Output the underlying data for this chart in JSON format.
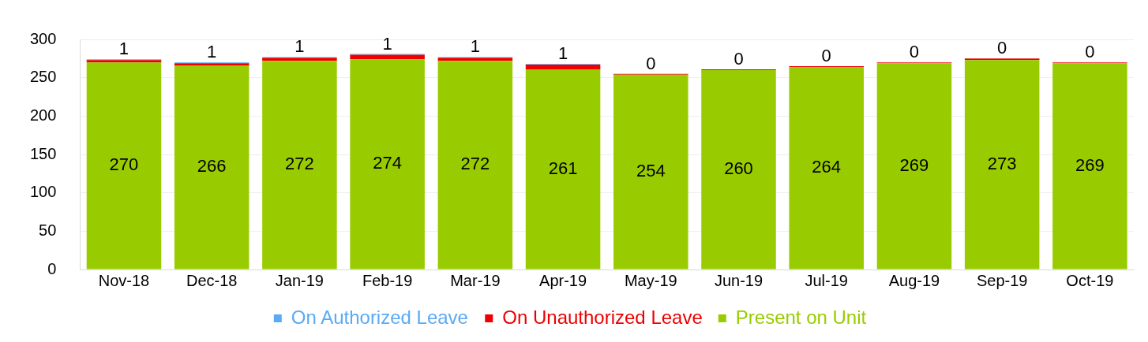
{
  "chart_data": {
    "type": "bar",
    "stacked": true,
    "categories": [
      "Nov-18",
      "Dec-18",
      "Jan-19",
      "Feb-19",
      "Mar-19",
      "Apr-19",
      "May-19",
      "Jun-19",
      "Jul-19",
      "Aug-19",
      "Sep-19",
      "Oct-19"
    ],
    "series": [
      {
        "name": "Present on Unit",
        "color": "#99cc00",
        "values": [
          270,
          266,
          272,
          274,
          272,
          261,
          254,
          260,
          264,
          269,
          273,
          269
        ],
        "value_labels": [
          "270",
          "266",
          "272",
          "274",
          "272",
          "261",
          "254",
          "260",
          "264",
          "269",
          "273",
          "269"
        ]
      },
      {
        "name": "On Unauthorized Leave",
        "color": "#ee0000",
        "values": [
          3,
          3,
          4,
          6,
          4,
          6,
          1,
          1,
          1,
          1,
          2,
          1
        ]
      },
      {
        "name": "On Authorized Leave",
        "color": "#5aaaf5",
        "values": [
          1,
          1,
          1,
          1,
          1,
          1,
          0,
          0,
          0,
          0,
          0,
          0
        ],
        "value_labels": [
          "1",
          "1",
          "1",
          "1",
          "1",
          "1",
          "0",
          "0",
          "0",
          "0",
          "0",
          "0"
        ]
      }
    ],
    "ylim": [
      0,
      300
    ],
    "yticks": [
      0,
      50,
      100,
      150,
      200,
      250,
      300
    ],
    "grid": "y",
    "legend": "bottom"
  }
}
